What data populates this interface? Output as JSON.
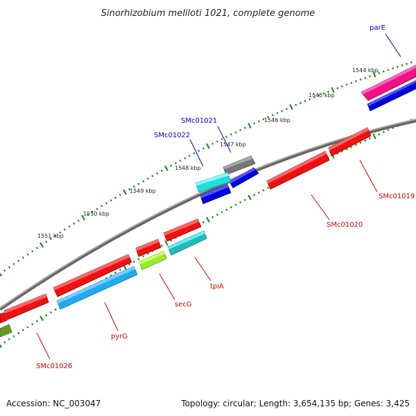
{
  "map": {
    "title": "Sinorhizobium meliloti 1021, complete genome",
    "footer_left": "Accession: NC_003047",
    "footer_right": "Topology: circular; Length: 3,654,135 bp; Genes: 3,425"
  },
  "scale": {
    "labels": [
      "1544 kbp",
      "1545 kbp",
      "1546 kbp",
      "1547 kbp",
      "1548 kbp",
      "1549 kbp",
      "1550 kbp",
      "1551 kbp"
    ]
  },
  "genes": [
    {
      "name": "parE",
      "color": "#0000cc",
      "strand": "forward",
      "feature_color": "#ee1188"
    },
    {
      "name": "SMc01021",
      "color": "#0000cc",
      "strand": "forward",
      "feature_color": "#777777"
    },
    {
      "name": "SMc01022",
      "color": "#0000cc",
      "strand": "forward",
      "feature_color": "#22dddd"
    },
    {
      "name": "SMc01019",
      "color": "#cc0000",
      "strand": "reverse",
      "feature_color": "#ee1111"
    },
    {
      "name": "SMc01020",
      "color": "#cc0000",
      "strand": "reverse",
      "feature_color": "#ee1111"
    },
    {
      "name": "tpiA",
      "color": "#cc0000",
      "strand": "reverse",
      "feature_color": "#22bbbb"
    },
    {
      "name": "secG",
      "color": "#cc0000",
      "strand": "reverse",
      "feature_color": "#99ee22"
    },
    {
      "name": "pyrG",
      "color": "#cc0000",
      "strand": "reverse",
      "feature_color": "#22aaee"
    },
    {
      "name": "SMc01026",
      "color": "#cc0000",
      "strand": "reverse",
      "feature_color": "#ee1111"
    }
  ],
  "legend_colors": {
    "backbone": "#888888",
    "tick": "#228b22",
    "cds_forward": "#0000dd",
    "cds_reverse": "#ee1111"
  }
}
